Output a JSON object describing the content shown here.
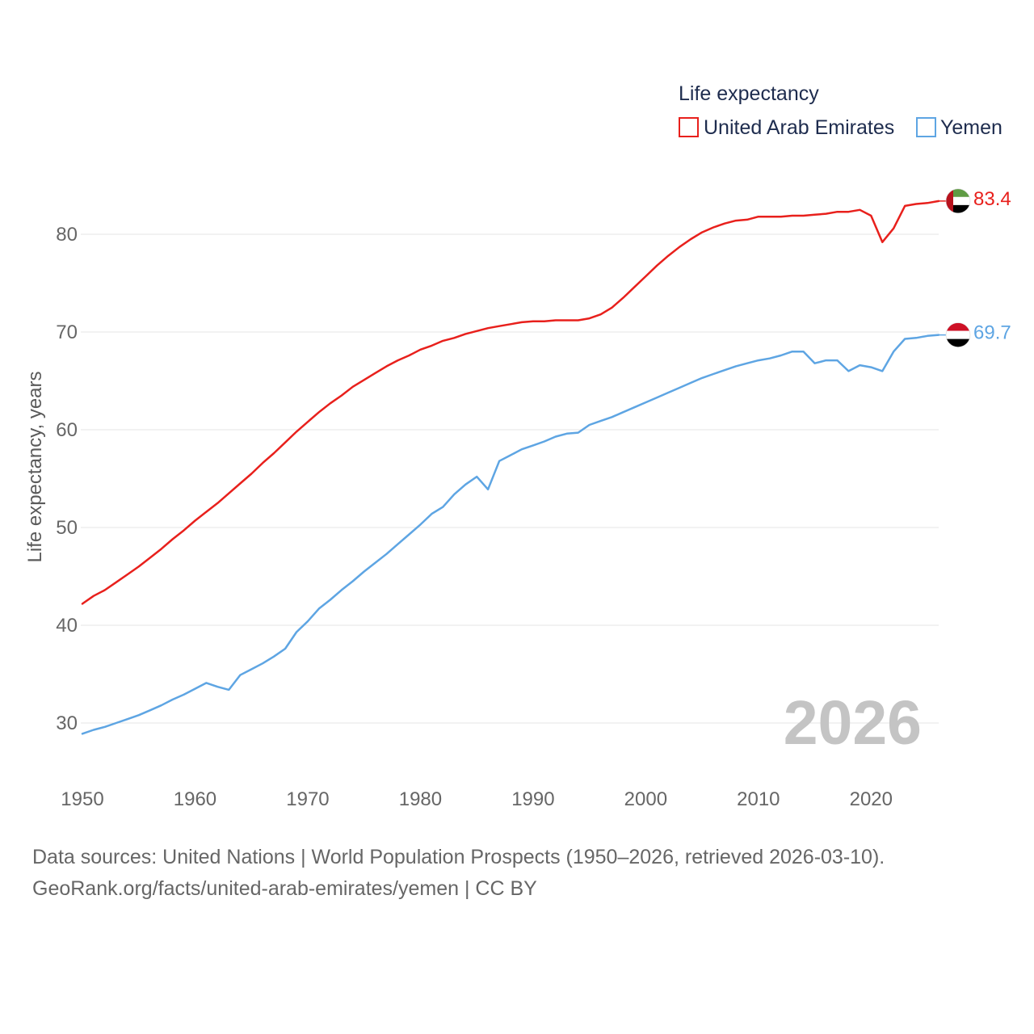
{
  "chart_data": {
    "type": "line",
    "title": "",
    "legend_title": "Life expectancy",
    "legend_position": "top-right",
    "xlabel": "",
    "ylabel": "Life expectancy, years",
    "grid": true,
    "xlim": [
      1950,
      2026
    ],
    "ylim": [
      25,
      85
    ],
    "xticks": [
      1950,
      1960,
      1970,
      1980,
      1990,
      2000,
      2010,
      2020
    ],
    "yticks": [
      30,
      40,
      50,
      60,
      70,
      80
    ],
    "year_label": "2026",
    "x": [
      1950,
      1951,
      1952,
      1953,
      1954,
      1955,
      1956,
      1957,
      1958,
      1959,
      1960,
      1961,
      1962,
      1963,
      1964,
      1965,
      1966,
      1967,
      1968,
      1969,
      1970,
      1971,
      1972,
      1973,
      1974,
      1975,
      1976,
      1977,
      1978,
      1979,
      1980,
      1981,
      1982,
      1983,
      1984,
      1985,
      1986,
      1987,
      1988,
      1989,
      1990,
      1991,
      1992,
      1993,
      1994,
      1995,
      1996,
      1997,
      1998,
      1999,
      2000,
      2001,
      2002,
      2003,
      2004,
      2005,
      2006,
      2007,
      2008,
      2009,
      2010,
      2011,
      2012,
      2013,
      2014,
      2015,
      2016,
      2017,
      2018,
      2019,
      2020,
      2021,
      2022,
      2023,
      2024,
      2025,
      2026
    ],
    "series": [
      {
        "name": "United Arab Emirates",
        "color": "#e8201c",
        "flag_icon": "uae-flag-icon",
        "last_value_label": "83.4",
        "values": [
          42.2,
          43.0,
          43.6,
          44.4,
          45.2,
          46.0,
          46.9,
          47.8,
          48.8,
          49.7,
          50.7,
          51.6,
          52.5,
          53.5,
          54.5,
          55.5,
          56.6,
          57.6,
          58.7,
          59.8,
          60.8,
          61.8,
          62.7,
          63.5,
          64.4,
          65.1,
          65.8,
          66.5,
          67.1,
          67.6,
          68.2,
          68.6,
          69.1,
          69.4,
          69.8,
          70.1,
          70.4,
          70.6,
          70.8,
          71.0,
          71.1,
          71.1,
          71.2,
          71.2,
          71.2,
          71.4,
          71.8,
          72.5,
          73.5,
          74.6,
          75.7,
          76.8,
          77.8,
          78.7,
          79.5,
          80.2,
          80.7,
          81.1,
          81.4,
          81.5,
          81.8,
          81.8,
          81.8,
          81.9,
          81.9,
          82.0,
          82.1,
          82.3,
          82.3,
          82.5,
          81.9,
          79.2,
          80.6,
          82.9,
          83.1,
          83.2,
          83.4
        ]
      },
      {
        "name": "Yemen",
        "color": "#5ea5e3",
        "flag_icon": "yemen-flag-icon",
        "last_value_label": "69.7",
        "values": [
          28.9,
          29.3,
          29.6,
          30.0,
          30.4,
          30.8,
          31.3,
          31.8,
          32.4,
          32.9,
          33.5,
          34.1,
          33.7,
          33.4,
          34.9,
          35.5,
          36.1,
          36.8,
          37.6,
          39.3,
          40.4,
          41.7,
          42.6,
          43.6,
          44.5,
          45.5,
          46.4,
          47.3,
          48.3,
          49.3,
          50.3,
          51.4,
          52.1,
          53.4,
          54.4,
          55.2,
          53.9,
          56.8,
          57.4,
          58.0,
          58.4,
          58.8,
          59.3,
          59.6,
          59.7,
          60.5,
          60.9,
          61.3,
          61.8,
          62.3,
          62.8,
          63.3,
          63.8,
          64.3,
          64.8,
          65.3,
          65.7,
          66.1,
          66.5,
          66.8,
          67.1,
          67.3,
          67.6,
          68.0,
          68.0,
          66.8,
          67.1,
          67.1,
          66.0,
          66.6,
          66.4,
          66.0,
          68.0,
          69.3,
          69.4,
          69.6,
          69.7
        ]
      }
    ]
  },
  "footer": {
    "source_line": "Data sources: United Nations | World Population Prospects (1950–2026, retrieved 2026-03-10).",
    "attribution_line": "GeoRank.org/facts/united-arab-emirates/yemen | CC BY"
  }
}
